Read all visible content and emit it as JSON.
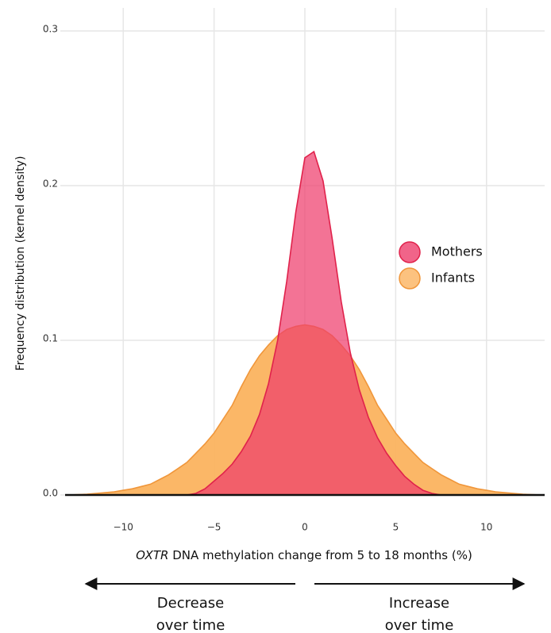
{
  "chart_data": {
    "type": "density",
    "y_label": "Frequency distribution (kernel density)",
    "x_label_italic": "OXTR",
    "x_label": "DNA methylation change from 5 to 18 months (%)",
    "x": [
      -13,
      -12.5,
      -12,
      -11.5,
      -11,
      -10.5,
      -10,
      -9.5,
      -9,
      -8.5,
      -8,
      -7.5,
      -7,
      -6.5,
      -6,
      -5.5,
      -5,
      -4.5,
      -4,
      -3.5,
      -3,
      -2.5,
      -2,
      -1.5,
      -1,
      -0.5,
      0,
      0.5,
      1,
      1.5,
      2,
      2.5,
      3,
      3.5,
      4,
      4.5,
      5,
      5.5,
      6,
      6.5,
      7,
      7.5,
      8,
      8.5,
      9,
      9.5,
      10,
      10.5,
      11,
      11.5,
      12,
      12.5,
      13
    ],
    "series": [
      {
        "name": "Infants",
        "color": "#fbb35f",
        "stroke": "#f0963a",
        "values": [
          0,
          0.0002,
          0.0005,
          0.001,
          0.0015,
          0.002,
          0.003,
          0.004,
          0.0055,
          0.007,
          0.01,
          0.013,
          0.017,
          0.021,
          0.027,
          0.033,
          0.04,
          0.049,
          0.058,
          0.07,
          0.081,
          0.09,
          0.097,
          0.103,
          0.107,
          0.109,
          0.11,
          0.109,
          0.107,
          0.103,
          0.097,
          0.09,
          0.081,
          0.07,
          0.058,
          0.049,
          0.04,
          0.033,
          0.027,
          0.021,
          0.017,
          0.013,
          0.01,
          0.007,
          0.0055,
          0.004,
          0.003,
          0.002,
          0.0015,
          0.001,
          0.0005,
          0.0002,
          0
        ]
      },
      {
        "name": "Mothers",
        "color": "#ee3d6c",
        "stroke": "#e0224b",
        "values": [
          0,
          0,
          0,
          0,
          0,
          0,
          0,
          0,
          0,
          0,
          0,
          0,
          0,
          0,
          0.001,
          0.004,
          0.009,
          0.014,
          0.02,
          0.028,
          0.038,
          0.052,
          0.072,
          0.1,
          0.138,
          0.183,
          0.218,
          0.222,
          0.203,
          0.166,
          0.125,
          0.092,
          0.068,
          0.05,
          0.037,
          0.027,
          0.019,
          0.012,
          0.007,
          0.003,
          0.001,
          0,
          0,
          0,
          0,
          0,
          0,
          0,
          0,
          0,
          0,
          0,
          0
        ]
      }
    ],
    "xlim": [
      -13.2,
      13.2
    ],
    "ylim": [
      0,
      0.3
    ],
    "xticks": [
      {
        "value": -10,
        "label": "−10"
      },
      {
        "value": -5,
        "label": "−5"
      },
      0,
      5,
      {
        "value": 10,
        "label": "10"
      }
    ],
    "yticks": [
      {
        "value": 0,
        "label": "0.0"
      },
      0.1,
      0.2,
      0.3
    ],
    "grid": true,
    "legend": "right",
    "annotations": [
      {
        "lines": [
          "Decrease",
          "over time"
        ]
      },
      {
        "lines": [
          "Increase",
          "over time"
        ]
      }
    ]
  }
}
